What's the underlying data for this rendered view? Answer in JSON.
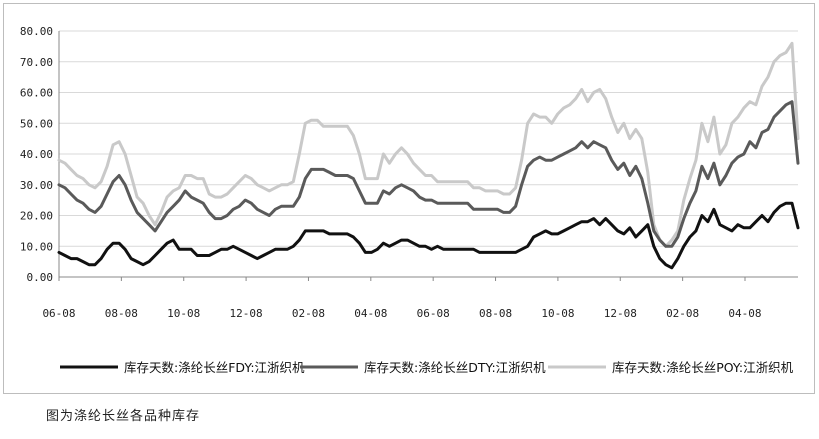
{
  "chart_data": {
    "type": "line",
    "title": "",
    "xlabel": "",
    "ylabel": "",
    "ylim": [
      0,
      80
    ],
    "yticks": [
      "0.00",
      "10.00",
      "20.00",
      "30.00",
      "40.00",
      "50.00",
      "60.00",
      "70.00",
      "80.00"
    ],
    "xticks": [
      "06-08",
      "08-08",
      "10-08",
      "12-08",
      "02-08",
      "04-08",
      "06-08",
      "08-08",
      "10-08",
      "12-08",
      "02-08",
      "04-08"
    ],
    "grid": "horizontal",
    "legend_position": "bottom",
    "x_index_note_free": true,
    "series": [
      {
        "name": "库存天数:涤纶长丝FDY:江浙织机",
        "color": "#111111",
        "values": [
          8,
          7,
          6,
          6,
          5,
          4,
          4,
          6,
          9,
          11,
          11,
          9,
          6,
          5,
          4,
          5,
          7,
          9,
          11,
          12,
          9,
          9,
          9,
          7,
          7,
          7,
          8,
          9,
          9,
          10,
          9,
          8,
          7,
          6,
          7,
          8,
          9,
          9,
          9,
          10,
          12,
          15,
          15,
          15,
          15,
          14,
          14,
          14,
          14,
          13,
          11,
          8,
          8,
          9,
          11,
          10,
          11,
          12,
          12,
          11,
          10,
          10,
          9,
          10,
          9,
          9,
          9,
          9,
          9,
          9,
          8,
          8,
          8,
          8,
          8,
          8,
          8,
          9,
          10,
          13,
          14,
          15,
          14,
          14,
          15,
          16,
          17,
          18,
          18,
          19,
          17,
          19,
          17,
          15,
          14,
          16,
          13,
          15,
          17,
          10,
          6,
          4,
          3,
          6,
          10,
          13,
          15,
          20,
          18,
          22,
          17,
          16,
          15,
          17,
          16,
          16,
          18,
          20,
          18,
          21,
          23,
          24,
          24,
          16
        ]
      },
      {
        "name": "库存天数:涤纶长丝DTY:江浙织机",
        "color": "#5a5a5a",
        "values": [
          30,
          29,
          27,
          25,
          24,
          22,
          21,
          23,
          27,
          31,
          33,
          30,
          25,
          21,
          19,
          17,
          15,
          18,
          21,
          23,
          25,
          28,
          26,
          25,
          24,
          21,
          19,
          19,
          20,
          22,
          23,
          25,
          24,
          22,
          21,
          20,
          22,
          23,
          23,
          23,
          26,
          32,
          35,
          35,
          35,
          34,
          33,
          33,
          33,
          32,
          28,
          24,
          24,
          24,
          28,
          27,
          29,
          30,
          29,
          28,
          26,
          25,
          25,
          24,
          24,
          24,
          24,
          24,
          24,
          22,
          22,
          22,
          22,
          22,
          21,
          21,
          23,
          30,
          36,
          38,
          39,
          38,
          38,
          39,
          40,
          41,
          42,
          44,
          42,
          44,
          43,
          42,
          38,
          35,
          37,
          33,
          36,
          32,
          24,
          15,
          12,
          10,
          10,
          13,
          19,
          24,
          28,
          36,
          32,
          37,
          30,
          33,
          37,
          39,
          40,
          44,
          42,
          47,
          48,
          52,
          54,
          56,
          57,
          37
        ]
      },
      {
        "name": "库存天数:涤纶长丝POY:江浙织机",
        "color": "#c9c9c9",
        "values": [
          38,
          37,
          35,
          33,
          32,
          30,
          29,
          31,
          36,
          43,
          44,
          40,
          33,
          26,
          24,
          20,
          17,
          21,
          26,
          28,
          29,
          33,
          33,
          32,
          32,
          27,
          26,
          26,
          27,
          29,
          31,
          33,
          32,
          30,
          29,
          28,
          29,
          30,
          30,
          31,
          40,
          50,
          51,
          51,
          49,
          49,
          49,
          49,
          49,
          46,
          40,
          32,
          32,
          32,
          40,
          37,
          40,
          42,
          40,
          37,
          35,
          33,
          33,
          31,
          31,
          31,
          31,
          31,
          31,
          29,
          29,
          28,
          28,
          28,
          27,
          27,
          29,
          38,
          50,
          53,
          52,
          52,
          50,
          53,
          55,
          56,
          58,
          61,
          57,
          60,
          61,
          58,
          52,
          47,
          50,
          45,
          48,
          45,
          34,
          17,
          12,
          10,
          12,
          15,
          25,
          32,
          38,
          50,
          44,
          52,
          40,
          43,
          50,
          52,
          55,
          57,
          56,
          62,
          65,
          70,
          72,
          73,
          76,
          45
        ]
      }
    ]
  },
  "caption": "图为涤纶长丝各品种库存"
}
